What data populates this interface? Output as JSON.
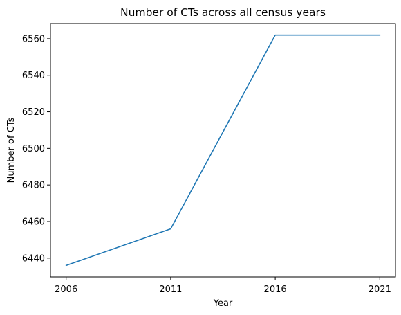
{
  "chart_data": {
    "type": "line",
    "title": "Number of CTs across all census years",
    "xlabel": "Year",
    "ylabel": "Number of CTs",
    "x": [
      "2006",
      "2011",
      "2016",
      "2021"
    ],
    "series": [
      {
        "values": [
          6436,
          6456,
          6562,
          6562
        ],
        "color": "#1f77b4"
      }
    ],
    "yticks": [
      6440,
      6460,
      6480,
      6500,
      6520,
      6540,
      6560
    ],
    "ylim": [
      6429.7,
      6568.3
    ],
    "grid": false,
    "legend": "none"
  }
}
